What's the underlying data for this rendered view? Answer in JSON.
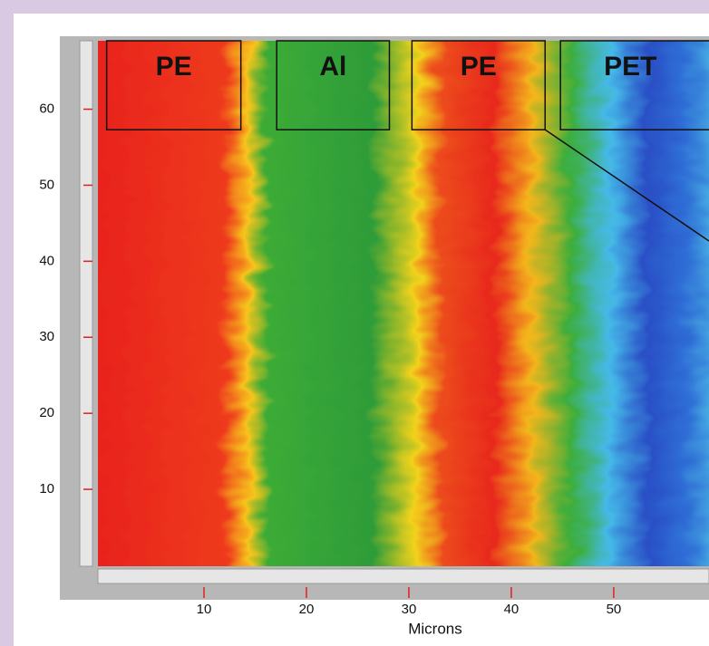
{
  "chart_data": {
    "type": "heatmap",
    "xlabel": "Microns",
    "xlim": [
      0,
      59.3
    ],
    "xticks": [
      10,
      20,
      30,
      40,
      50
    ],
    "ylim": [
      0,
      69
    ],
    "yticks": [
      10,
      20,
      30,
      40,
      50,
      60
    ],
    "regions": [
      {
        "label": "PE",
        "x": [
          0.5,
          13.6
        ],
        "y": [
          57.3,
          69
        ]
      },
      {
        "label": "Al",
        "x": [
          17.1,
          28.1
        ],
        "y": [
          57.3,
          69
        ]
      },
      {
        "label": "PE",
        "x": [
          30.3,
          43.3
        ],
        "y": [
          57.3,
          69
        ]
      },
      {
        "label": "PET",
        "x": [
          44.8,
          62
        ],
        "y": [
          57.3,
          69
        ]
      }
    ]
  }
}
